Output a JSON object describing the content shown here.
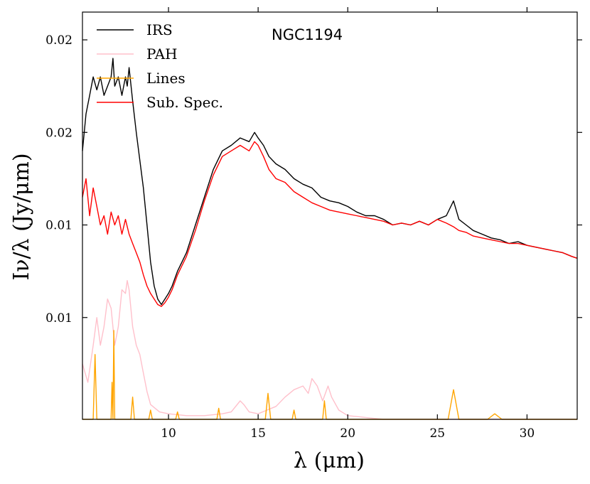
{
  "chart_data": {
    "type": "line",
    "annotation": "NGC1194",
    "xlabel": "λ (μm)",
    "ylabel": "Iν/λ (Jy/μm)",
    "xlim": [
      5.2,
      32.8
    ],
    "ylim": [
      0.002,
      0.024
    ],
    "x_ticks": [
      {
        "value": 10,
        "label": "10"
      },
      {
        "value": 15,
        "label": "15"
      },
      {
        "value": 20,
        "label": "20"
      },
      {
        "value": 25,
        "label": "25"
      },
      {
        "value": 30,
        "label": "30"
      }
    ],
    "y_ticks": [
      {
        "value": 0.0075,
        "label": "0.01"
      },
      {
        "value": 0.0125,
        "label": "0.01"
      },
      {
        "value": 0.0175,
        "label": "0.02"
      },
      {
        "value": 0.0225,
        "label": "0.02"
      }
    ],
    "legend": [
      "IRS",
      "PAH",
      "Lines",
      "Sub. Spec."
    ],
    "series": [
      {
        "name": "IRS",
        "color": "#000000",
        "x": [
          5.2,
          5.4,
          5.6,
          5.8,
          6.0,
          6.2,
          6.4,
          6.6,
          6.8,
          6.9,
          7.0,
          7.2,
          7.4,
          7.6,
          7.7,
          7.8,
          8.0,
          8.2,
          8.4,
          8.6,
          8.8,
          9.0,
          9.2,
          9.4,
          9.6,
          9.8,
          10.0,
          10.2,
          10.5,
          11.0,
          11.5,
          12.0,
          12.5,
          13.0,
          13.5,
          14.0,
          14.5,
          14.8,
          15.0,
          15.3,
          15.6,
          16.0,
          16.5,
          17.0,
          17.5,
          18.0,
          18.5,
          19.0,
          19.5,
          20.0,
          20.5,
          21.0,
          21.5,
          22.0,
          22.5,
          23.0,
          23.5,
          24.0,
          24.5,
          25.0,
          25.5,
          25.9,
          26.2,
          26.6,
          27.0,
          27.5,
          28.0,
          28.5,
          29.0,
          29.5,
          30.0,
          30.5,
          31.0,
          31.5,
          32.0,
          32.5,
          32.8
        ],
        "y": [
          0.0165,
          0.0185,
          0.0195,
          0.0205,
          0.0198,
          0.0205,
          0.0195,
          0.02,
          0.0205,
          0.0215,
          0.02,
          0.0205,
          0.0195,
          0.0205,
          0.02,
          0.021,
          0.0192,
          0.0175,
          0.016,
          0.0145,
          0.0125,
          0.0105,
          0.0092,
          0.0085,
          0.0082,
          0.0085,
          0.0088,
          0.0092,
          0.01,
          0.011,
          0.0125,
          0.014,
          0.0155,
          0.0165,
          0.0168,
          0.0172,
          0.017,
          0.0175,
          0.0172,
          0.0168,
          0.0162,
          0.0158,
          0.0155,
          0.015,
          0.0147,
          0.0145,
          0.014,
          0.0138,
          0.0137,
          0.0135,
          0.0132,
          0.013,
          0.013,
          0.0128,
          0.0125,
          0.0126,
          0.0125,
          0.0127,
          0.0125,
          0.0128,
          0.013,
          0.0138,
          0.0128,
          0.0125,
          0.0122,
          0.012,
          0.0118,
          0.0117,
          0.0115,
          0.0116,
          0.0114,
          0.0113,
          0.0112,
          0.0111,
          0.011,
          0.0108,
          0.0107
        ]
      },
      {
        "name": "PAH",
        "color": "#ffc0cb",
        "x": [
          5.2,
          5.5,
          5.8,
          6.0,
          6.2,
          6.4,
          6.6,
          6.8,
          7.0,
          7.2,
          7.4,
          7.6,
          7.7,
          7.8,
          8.0,
          8.2,
          8.4,
          8.6,
          8.8,
          9.0,
          9.5,
          10.0,
          11.0,
          12.0,
          13.0,
          13.5,
          14.0,
          14.2,
          14.5,
          15.0,
          16.0,
          16.5,
          17.0,
          17.5,
          17.8,
          18.0,
          18.3,
          18.6,
          18.9,
          19.1,
          19.5,
          20.0,
          21.0,
          22.0,
          24.0,
          26.0,
          28.0,
          30.0,
          32.8
        ],
        "y": [
          0.005,
          0.004,
          0.006,
          0.0075,
          0.006,
          0.007,
          0.0085,
          0.008,
          0.006,
          0.007,
          0.009,
          0.0088,
          0.0095,
          0.009,
          0.007,
          0.006,
          0.0055,
          0.0045,
          0.0035,
          0.0028,
          0.0024,
          0.0023,
          0.0022,
          0.0022,
          0.0023,
          0.0024,
          0.003,
          0.0028,
          0.0024,
          0.0023,
          0.0027,
          0.0032,
          0.0036,
          0.0038,
          0.0034,
          0.0042,
          0.0038,
          0.003,
          0.0038,
          0.0032,
          0.0025,
          0.0022,
          0.0021,
          0.002,
          0.002,
          0.002,
          0.002,
          0.002,
          0.002
        ]
      },
      {
        "name": "Lines",
        "color": "#ffa500",
        "x": [
          5.2,
          5.8,
          5.9,
          6.0,
          6.8,
          6.85,
          6.9,
          6.95,
          7.0,
          7.4,
          7.9,
          8.0,
          8.1,
          8.9,
          9.0,
          9.1,
          10.4,
          10.5,
          10.6,
          12.7,
          12.8,
          12.9,
          15.4,
          15.55,
          15.7,
          16.9,
          17.0,
          17.1,
          18.6,
          18.7,
          18.8,
          25.6,
          25.9,
          26.2,
          27.8,
          28.2,
          28.6,
          32.8
        ],
        "y": [
          0.002,
          0.002,
          0.0055,
          0.002,
          0.002,
          0.004,
          0.002,
          0.0068,
          0.002,
          0.002,
          0.002,
          0.0032,
          0.002,
          0.002,
          0.0025,
          0.002,
          0.002,
          0.0024,
          0.002,
          0.002,
          0.0026,
          0.002,
          0.002,
          0.0034,
          0.002,
          0.002,
          0.0025,
          0.002,
          0.002,
          0.003,
          0.002,
          0.002,
          0.0036,
          0.002,
          0.002,
          0.0023,
          0.002,
          0.002
        ]
      },
      {
        "name": "Sub. Spec.",
        "color": "#ff0000",
        "x": [
          5.2,
          5.4,
          5.6,
          5.8,
          6.0,
          6.2,
          6.4,
          6.6,
          6.8,
          7.0,
          7.2,
          7.4,
          7.6,
          7.8,
          8.0,
          8.2,
          8.4,
          8.6,
          8.8,
          9.0,
          9.2,
          9.4,
          9.6,
          9.8,
          10.0,
          10.2,
          10.5,
          11.0,
          11.5,
          12.0,
          12.5,
          13.0,
          13.5,
          14.0,
          14.5,
          14.8,
          15.0,
          15.3,
          15.6,
          16.0,
          16.5,
          17.0,
          17.5,
          18.0,
          18.5,
          19.0,
          19.5,
          20.0,
          20.5,
          21.0,
          21.5,
          22.0,
          22.5,
          23.0,
          23.5,
          24.0,
          24.5,
          25.0,
          25.5,
          25.9,
          26.2,
          26.6,
          27.0,
          27.5,
          28.0,
          28.5,
          29.0,
          29.5,
          30.0,
          30.5,
          31.0,
          31.5,
          32.0,
          32.5,
          32.8
        ],
        "y": [
          0.014,
          0.015,
          0.013,
          0.0145,
          0.0135,
          0.0125,
          0.013,
          0.012,
          0.0132,
          0.0125,
          0.013,
          0.012,
          0.0128,
          0.012,
          0.0115,
          0.011,
          0.0105,
          0.0098,
          0.0092,
          0.0088,
          0.0085,
          0.0082,
          0.0081,
          0.0083,
          0.0086,
          0.009,
          0.0098,
          0.0108,
          0.0122,
          0.0138,
          0.0152,
          0.0162,
          0.0165,
          0.0168,
          0.0165,
          0.017,
          0.0168,
          0.0162,
          0.0155,
          0.015,
          0.0148,
          0.0143,
          0.014,
          0.0137,
          0.0135,
          0.0133,
          0.0132,
          0.0131,
          0.013,
          0.0129,
          0.0128,
          0.0127,
          0.0125,
          0.0126,
          0.0125,
          0.0127,
          0.0125,
          0.0128,
          0.0126,
          0.0124,
          0.0122,
          0.0121,
          0.0119,
          0.0118,
          0.0117,
          0.0116,
          0.0115,
          0.0115,
          0.0114,
          0.0113,
          0.0112,
          0.0111,
          0.011,
          0.0108,
          0.0107
        ]
      }
    ]
  }
}
